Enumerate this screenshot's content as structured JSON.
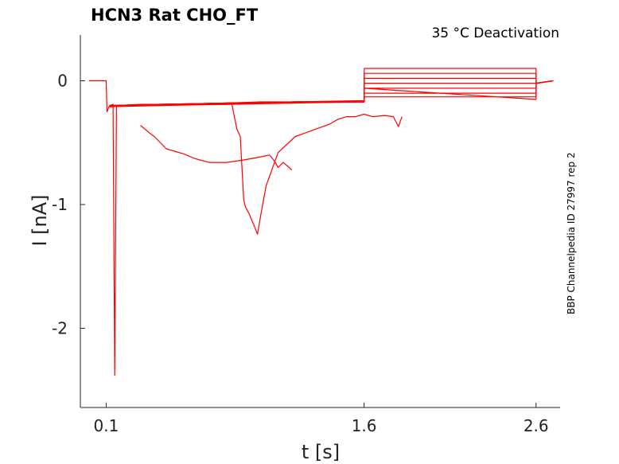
{
  "chart_data": {
    "type": "line",
    "title": "HCN3  Rat  CHO_FT",
    "subtitle": "35 °C  Deactivation",
    "side_label": "BBP Channelpedia ID 27997 rep 2",
    "xlabel": "t [s]",
    "ylabel": "I [nA]",
    "xlim": [
      -0.05,
      2.74
    ],
    "ylim": [
      -2.64,
      0.37
    ],
    "x_ticks": [
      0.1,
      1.6,
      2.6
    ],
    "x_tick_labels": [
      "0.1",
      "1.6",
      "2.6"
    ],
    "y_ticks": [
      0,
      -1,
      -2
    ],
    "y_tick_labels": [
      "0",
      "-1",
      "-2"
    ],
    "grid": false,
    "color": "#ff0000",
    "series": [
      {
        "x": [
          0.0,
          0.1,
          0.105,
          0.12,
          0.14,
          0.15,
          0.16,
          0.3,
          0.6,
          1.0,
          1.3,
          1.6,
          1.601,
          2.6,
          2.601,
          2.7
        ],
        "y": [
          0.0,
          0.0,
          -0.25,
          -0.2,
          -0.19,
          -2.38,
          -0.2,
          -0.19,
          -0.19,
          -0.18,
          -0.17,
          -0.17,
          0.1,
          0.1,
          -0.02,
          -0.0
        ]
      },
      {
        "x": [
          0.12,
          0.4,
          0.8,
          1.2,
          1.6,
          1.601,
          2.6,
          2.601,
          2.7
        ],
        "y": [
          -0.2,
          -0.19,
          -0.18,
          -0.17,
          -0.17,
          0.06,
          0.06,
          -0.02,
          -0.0
        ]
      },
      {
        "x": [
          0.12,
          0.4,
          0.8,
          1.2,
          1.6,
          1.601,
          2.6,
          2.601,
          2.7
        ],
        "y": [
          -0.2,
          -0.2,
          -0.18,
          -0.17,
          -0.17,
          0.02,
          0.02,
          -0.02,
          -0.0
        ]
      },
      {
        "x": [
          0.12,
          0.4,
          0.8,
          1.2,
          1.6,
          1.601,
          2.6,
          2.601,
          2.7
        ],
        "y": [
          -0.21,
          -0.19,
          -0.19,
          -0.18,
          -0.17,
          -0.02,
          -0.02,
          -0.02,
          -0.0
        ]
      },
      {
        "x": [
          0.12,
          0.4,
          0.8,
          1.2,
          1.6,
          1.601,
          2.6,
          2.601,
          2.7
        ],
        "y": [
          -0.2,
          -0.19,
          -0.18,
          -0.17,
          -0.16,
          -0.06,
          -0.06,
          -0.02,
          -0.0
        ]
      },
      {
        "x": [
          0.12,
          0.4,
          0.8,
          1.2,
          1.6,
          1.601,
          2.6,
          2.601,
          2.7
        ],
        "y": [
          -0.21,
          -0.2,
          -0.19,
          -0.17,
          -0.17,
          -0.1,
          -0.1,
          -0.02,
          -0.0
        ]
      },
      {
        "x": [
          0.12,
          0.4,
          0.8,
          1.2,
          1.6,
          1.601,
          2.6,
          2.601,
          2.7
        ],
        "y": [
          -0.2,
          -0.19,
          -0.18,
          -0.17,
          -0.17,
          -0.13,
          -0.13,
          -0.02,
          -0.0
        ]
      },
      {
        "x": [
          0.12,
          0.4,
          0.8,
          1.0,
          1.6,
          1.601,
          2.6,
          2.601,
          2.7
        ],
        "y": [
          -0.2,
          -0.19,
          -0.18,
          -0.17,
          -0.17,
          -0.06,
          -0.15,
          -0.02,
          -0.0
        ]
      },
      {
        "x": [
          0.3,
          0.35,
          0.38,
          0.45,
          0.55,
          0.62,
          0.7,
          0.8,
          0.9,
          0.98,
          1.05,
          1.08,
          1.1,
          1.13,
          1.18
        ],
        "y": [
          -0.36,
          -0.42,
          -0.45,
          -0.55,
          -0.59,
          -0.63,
          -0.66,
          -0.66,
          -0.64,
          -0.62,
          -0.6,
          -0.65,
          -0.7,
          -0.66,
          -0.72
        ]
      },
      {
        "x": [
          0.83,
          0.86,
          0.88,
          0.9,
          0.91,
          0.93,
          0.96,
          0.98,
          1.0,
          1.03,
          1.1,
          1.2,
          1.3,
          1.4,
          1.45,
          1.5,
          1.55,
          1.6,
          1.65,
          1.72,
          1.77,
          1.8,
          1.82
        ],
        "y": [
          -0.18,
          -0.39,
          -0.45,
          -0.96,
          -1.02,
          -1.07,
          -1.17,
          -1.24,
          -1.08,
          -0.85,
          -0.58,
          -0.45,
          -0.4,
          -0.35,
          -0.31,
          -0.29,
          -0.29,
          -0.27,
          -0.29,
          -0.28,
          -0.29,
          -0.37,
          -0.29
        ]
      }
    ]
  }
}
